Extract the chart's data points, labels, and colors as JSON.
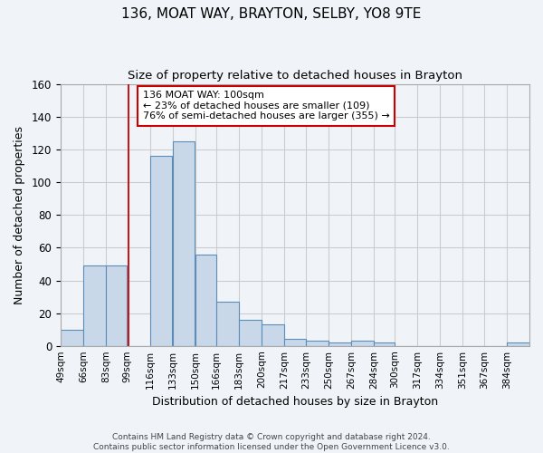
{
  "title": "136, MOAT WAY, BRAYTON, SELBY, YO8 9TE",
  "subtitle": "Size of property relative to detached houses in Brayton",
  "xlabel": "Distribution of detached houses by size in Brayton",
  "ylabel": "Number of detached properties",
  "footer_line1": "Contains HM Land Registry data © Crown copyright and database right 2024.",
  "footer_line2": "Contains public sector information licensed under the Open Government Licence v3.0.",
  "bin_labels": [
    "49sqm",
    "66sqm",
    "83sqm",
    "99sqm",
    "116sqm",
    "133sqm",
    "150sqm",
    "166sqm",
    "183sqm",
    "200sqm",
    "217sqm",
    "233sqm",
    "250sqm",
    "267sqm",
    "284sqm",
    "300sqm",
    "317sqm",
    "334sqm",
    "351sqm",
    "367sqm",
    "384sqm"
  ],
  "bar_values": [
    10,
    49,
    49,
    0,
    116,
    125,
    56,
    27,
    16,
    13,
    4,
    3,
    2,
    3,
    2,
    0,
    0,
    0,
    0,
    0,
    2
  ],
  "bin_edges": [
    49,
    66,
    83,
    99,
    116,
    133,
    150,
    166,
    183,
    200,
    217,
    233,
    250,
    267,
    284,
    300,
    317,
    334,
    351,
    367,
    384,
    401
  ],
  "bar_color": "#c8d8e8",
  "bar_edge_color": "#5b8db8",
  "grid_color": "#cccccc",
  "background_color": "#f0f4f8",
  "annotation_text": "136 MOAT WAY: 100sqm\n← 23% of detached houses are smaller (109)\n76% of semi-detached houses are larger (355) →",
  "annotation_box_edge": "#cc0000",
  "red_line_x": 100,
  "ylim": [
    0,
    160
  ],
  "yticks": [
    0,
    20,
    40,
    60,
    80,
    100,
    120,
    140,
    160
  ]
}
